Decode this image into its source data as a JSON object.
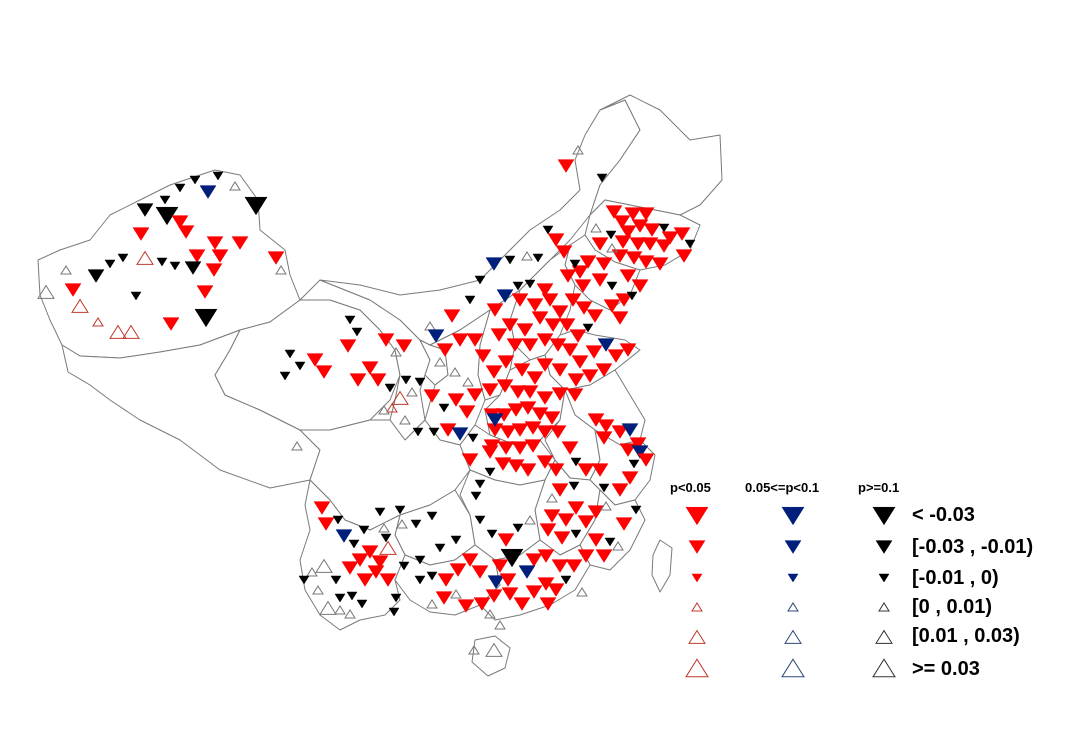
{
  "legend": {
    "significance_headers": [
      "p<0.05",
      "0.05<=p<0.1",
      "p>=0.1"
    ],
    "significance_colors": [
      "#ff0000",
      "#001f7a",
      "#000000"
    ],
    "outline_colors": [
      "#c0392b",
      "#2c4a78",
      "#333333"
    ],
    "classes": [
      {
        "label": "< -0.03",
        "direction": "down",
        "magnitude": 3
      },
      {
        "label": "[-0.03 , -0.01)",
        "direction": "down",
        "magnitude": 2
      },
      {
        "label": "[-0.01 , 0)",
        "direction": "down",
        "magnitude": 1
      },
      {
        "label": "[0 , 0.01)",
        "direction": "up",
        "magnitude": 1
      },
      {
        "label": "[0.01 , 0.03)",
        "direction": "up",
        "magnitude": 2
      },
      {
        "label": ">= 0.03",
        "direction": "up",
        "magnitude": 3
      }
    ]
  },
  "icons": {
    "decrease_marker": "filled-down-triangle",
    "increase_marker": "hollow-up-triangle"
  }
}
